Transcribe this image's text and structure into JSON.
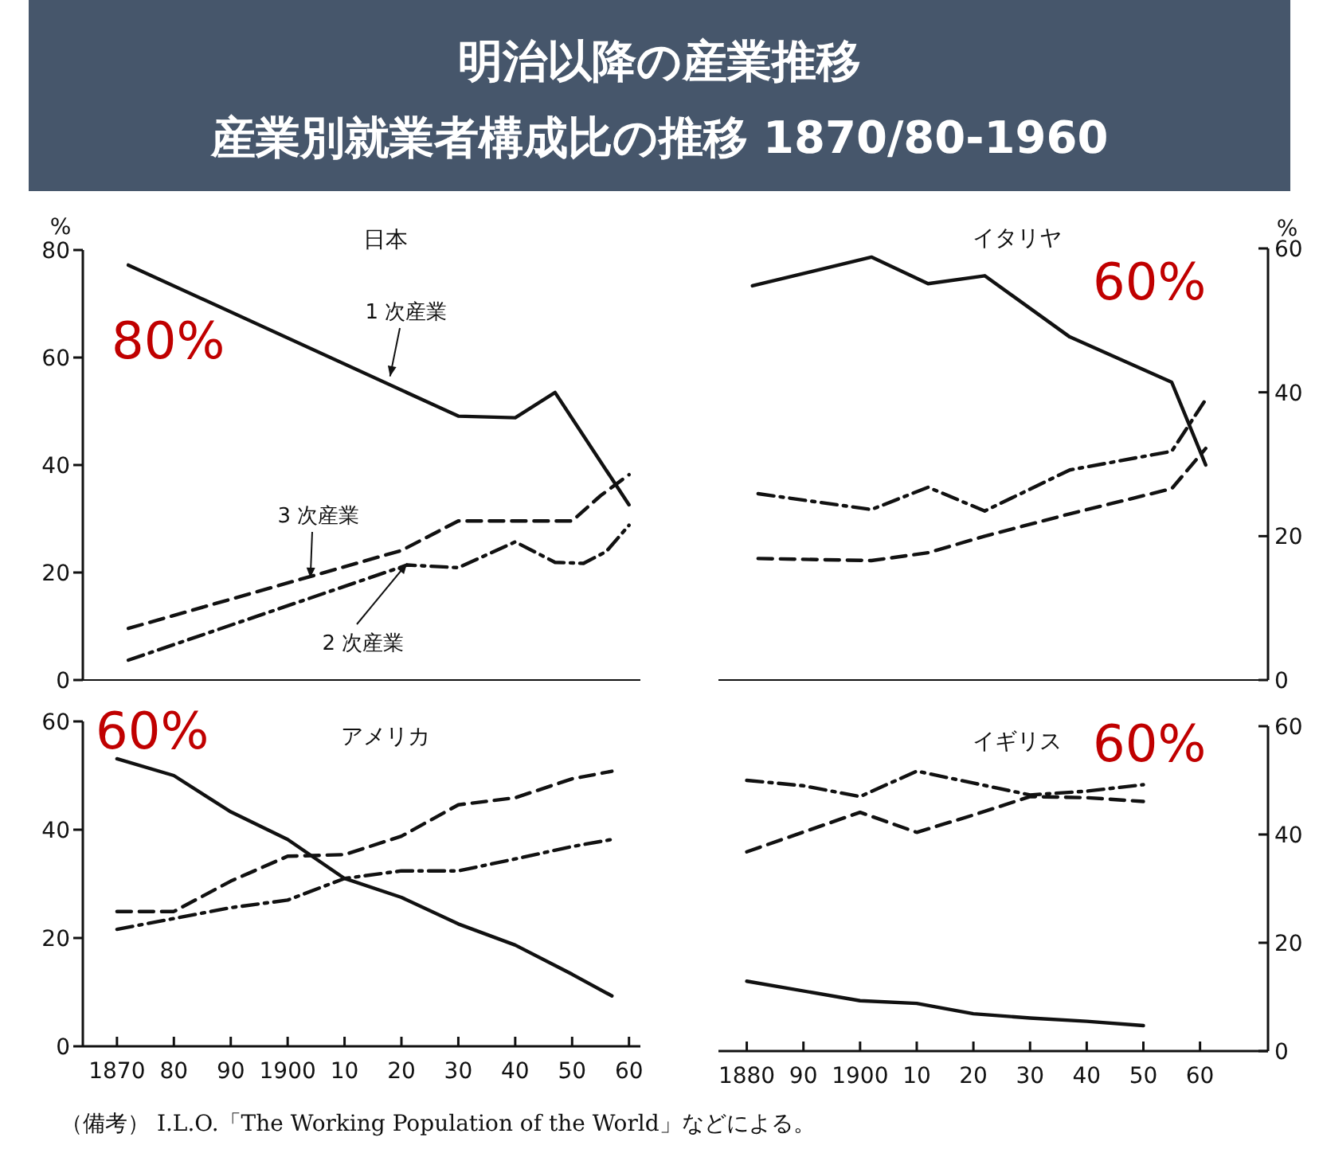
{
  "chart_data": [
    {
      "type": "other",
      "title": "明治以降の産業推移",
      "subtitle": "産業別就業者構成比の推移 1870/80-1960",
      "annotations": [
        "（備考） I.L.O.「The Working Population of the World」などによる。"
      ]
    },
    {
      "type": "line",
      "title": "日本",
      "ylabel": "%",
      "xlim": [
        1864,
        1962
      ],
      "ylim": [
        0,
        80
      ],
      "yticks": [
        0,
        20,
        40,
        60,
        80
      ],
      "tick_labels": "y",
      "series": [
        {
          "color": "#111111",
          "line_style": "solid",
          "x": [
            1872,
            1930,
            1940,
            1947,
            1960
          ],
          "values": [
            77.2,
            49.1,
            48.8,
            53.5,
            32.6
          ]
        },
        {
          "color": "#111111",
          "line_style": "dashdot",
          "x": [
            1872,
            1921,
            1930,
            1940,
            1947,
            1952,
            1956,
            1960
          ],
          "values": [
            3.7,
            21.4,
            20.9,
            25.7,
            21.9,
            21.7,
            23.9,
            28.8
          ]
        },
        {
          "color": "#111111",
          "line_style": "dashed",
          "x": [
            1872,
            1920,
            1930,
            1950,
            1955,
            1960
          ],
          "values": [
            9.6,
            24.1,
            29.6,
            29.6,
            34.3,
            38.2
          ]
        }
      ],
      "annotations": [
        "80%",
        {
          "text": "1 次産業",
          "x": 1918,
          "y": 56.5
        },
        {
          "text": "3 次産業",
          "x": 1904,
          "y": 19
        },
        {
          "text": "2 次産業",
          "x": 1921,
          "y": 21.7
        }
      ]
    },
    {
      "type": "line",
      "title": "イタリヤ",
      "y2label": "%",
      "xlim": [
        1875,
        1972
      ],
      "y2lim": [
        0,
        60
      ],
      "y2ticks": [
        0,
        20,
        40,
        60
      ],
      "tick_labels": "y",
      "series": [
        {
          "color": "#111111",
          "line_style": "solid",
          "axis": "y2",
          "x": [
            1881,
            1902,
            1912,
            1922,
            1937,
            1955,
            1961
          ],
          "values": [
            54.8,
            58.8,
            55.1,
            56.2,
            47.7,
            41.4,
            29.9
          ]
        },
        {
          "color": "#111111",
          "line_style": "dashdot",
          "axis": "y2",
          "x": [
            1882,
            1902,
            1912,
            1922,
            1937,
            1955,
            1961
          ],
          "values": [
            25.9,
            23.7,
            26.8,
            23.5,
            29.2,
            31.8,
            39.0
          ]
        },
        {
          "color": "#111111",
          "line_style": "dashed",
          "axis": "y2",
          "x": [
            1882,
            1902,
            1912,
            1922,
            1937,
            1955,
            1961
          ],
          "values": [
            16.9,
            16.6,
            17.7,
            20.0,
            23.1,
            26.6,
            32.2
          ]
        }
      ],
      "annotations": [
        "60%"
      ]
    },
    {
      "type": "line",
      "title": "アメリカ",
      "xlim": [
        1864,
        1962
      ],
      "ylim": [
        0,
        60
      ],
      "yticks": [
        0,
        20,
        40,
        60
      ],
      "xticks": [
        1870,
        {
          "value": 1880,
          "label": "80"
        },
        {
          "value": 1890,
          "label": "90"
        },
        1900,
        {
          "value": 1910,
          "label": "10"
        },
        {
          "value": 1920,
          "label": "20"
        },
        {
          "value": 1930,
          "label": "30"
        },
        {
          "value": 1940,
          "label": "40"
        },
        {
          "value": 1950,
          "label": "50"
        },
        {
          "value": 1960,
          "label": "60"
        }
      ],
      "series": [
        {
          "color": "#111111",
          "line_style": "solid",
          "x": [
            1870,
            1880,
            1890,
            1900,
            1910,
            1920,
            1930,
            1940,
            1950,
            1957
          ],
          "values": [
            53.1,
            50.0,
            43.3,
            38.2,
            31.0,
            27.5,
            22.6,
            18.7,
            13.3,
            9.3
          ]
        },
        {
          "color": "#111111",
          "line_style": "dashdot",
          "x": [
            1870,
            1880,
            1890,
            1900,
            1910,
            1920,
            1930,
            1940,
            1950,
            1957
          ],
          "values": [
            21.6,
            23.6,
            25.6,
            27.0,
            31.0,
            32.4,
            32.4,
            34.6,
            36.9,
            38.2
          ]
        },
        {
          "color": "#111111",
          "line_style": "dashed",
          "x": [
            1870,
            1880,
            1890,
            1900,
            1910,
            1920,
            1930,
            1940,
            1950,
            1957
          ],
          "values": [
            24.9,
            24.9,
            30.5,
            35.1,
            35.4,
            38.8,
            44.6,
            45.9,
            49.4,
            50.8
          ]
        }
      ],
      "annotations": [
        "60%"
      ]
    },
    {
      "type": "line",
      "title": "イギリス",
      "xlim": [
        1875,
        1972
      ],
      "y2lim": [
        0,
        60
      ],
      "y2ticks": [
        0,
        20,
        40,
        60
      ],
      "xticks": [
        1880,
        {
          "value": 1890,
          "label": "90"
        },
        1900,
        {
          "value": 1910,
          "label": "10"
        },
        {
          "value": 1920,
          "label": "20"
        },
        {
          "value": 1930,
          "label": "30"
        },
        {
          "value": 1940,
          "label": "40"
        },
        {
          "value": 1950,
          "label": "50"
        },
        {
          "value": 1960,
          "label": "60"
        }
      ],
      "series": [
        {
          "color": "#111111",
          "line_style": "solid",
          "axis": "y2",
          "x": [
            1880,
            1900,
            1910,
            1920,
            1930,
            1940,
            1950
          ],
          "values": [
            12.9,
            9.3,
            8.8,
            6.9,
            6.1,
            5.5,
            4.7
          ]
        },
        {
          "color": "#111111",
          "line_style": "dashdot",
          "axis": "y2",
          "x": [
            1880,
            1890,
            1900,
            1910,
            1920,
            1930,
            1940,
            1950
          ],
          "values": [
            50.0,
            49.0,
            47.0,
            51.7,
            49.5,
            47.3,
            48.0,
            49.2
          ]
        },
        {
          "color": "#111111",
          "line_style": "dashed",
          "axis": "y2",
          "x": [
            1880,
            1900,
            1910,
            1920,
            1930,
            1940,
            1950
          ],
          "values": [
            36.8,
            44.1,
            40.4,
            43.6,
            47.0,
            46.8,
            46.1
          ]
        }
      ],
      "annotations": [
        "60%"
      ]
    }
  ]
}
